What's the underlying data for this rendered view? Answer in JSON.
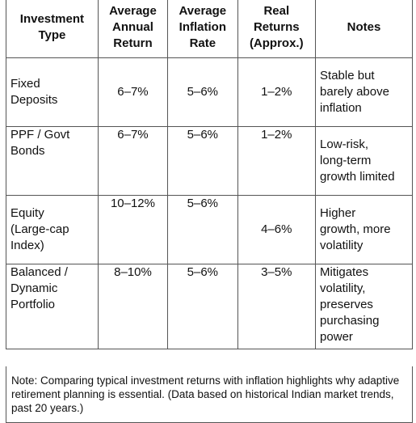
{
  "table": {
    "headers": [
      [
        "Investment",
        "Type"
      ],
      [
        "Average",
        "Annual",
        "Return"
      ],
      [
        "Average",
        "Inflation",
        "Rate"
      ],
      [
        "Real",
        "Returns",
        "(Approx.)"
      ],
      [
        "Notes"
      ]
    ],
    "rows": [
      {
        "type": [
          "Fixed",
          "Deposits"
        ],
        "annual_return": "6–7%",
        "inflation_rate": "5–6%",
        "real_returns": "1–2%",
        "notes": [
          "Stable but",
          "barely above",
          "inflation"
        ]
      },
      {
        "type": [
          "PPF / Govt",
          "Bonds"
        ],
        "annual_return": "6–7%",
        "inflation_rate": "5–6%",
        "real_returns": "1–2%",
        "notes": [
          "Low-risk,",
          "long-term",
          "growth limited"
        ]
      },
      {
        "type": [
          "Equity",
          "(Large-cap",
          "Index)"
        ],
        "annual_return": "10–12%",
        "inflation_rate": "5–6%",
        "real_returns": "4–6%",
        "notes": [
          "Higher",
          "growth, more",
          "volatility"
        ]
      },
      {
        "type": [
          "Balanced /",
          "Dynamic",
          "Portfolio"
        ],
        "annual_return": "8–10%",
        "inflation_rate": "5–6%",
        "real_returns": "3–5%",
        "notes": [
          "Mitigates",
          "volatility,",
          "preserves",
          "purchasing",
          "power"
        ]
      }
    ]
  },
  "note": "Note: Comparing typical investment returns with inflation highlights why adaptive retirement planning is essential. (Data based on historical Indian market trends, past 20 years.)"
}
